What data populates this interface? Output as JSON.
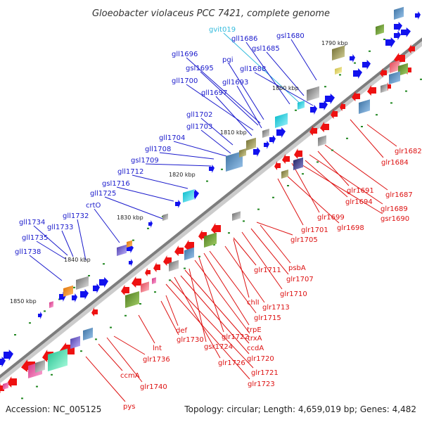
{
  "title": "Gloeobacter violaceus PCC 7421, complete genome",
  "footer": {
    "accession": "Accession: NC_005125",
    "summary": "Topology: circular; Length: 4,659,019 bp; Genes: 4,482"
  },
  "colors": {
    "forward_label": "#1a1acc",
    "reverse_label": "#dd1111",
    "rna_label": "#33bbdd",
    "forward_gene": "#1111ee",
    "reverse_gene": "#ee1111",
    "backbone": "#888888",
    "tick_dot": "#228822"
  },
  "scale": {
    "ticks": [
      "1790 kbp",
      "1800 kbp",
      "1810 kbp",
      "1820 kbp",
      "1830 kbp",
      "1840 kbp",
      "1850 kbp"
    ]
  },
  "labels": {
    "forward": [
      "gvit019",
      "gsl1680",
      "gll1686",
      "gsl1685",
      "gll1696",
      "pgi",
      "gsl1695",
      "gll1688",
      "gll1700",
      "gll1693",
      "gll1697",
      "gll1702",
      "gll1703",
      "gll1704",
      "gll1708",
      "gsl1709",
      "gll1712",
      "gsl1716",
      "gll1725",
      "crtO",
      "gll1732",
      "gll1734",
      "gll1733",
      "gll1735",
      "gll1738"
    ],
    "reverse": [
      "glr1682",
      "glr1684",
      "glr1687",
      "glr1691",
      "glr1689",
      "glr1694",
      "gsr1690",
      "glr1699",
      "glr1698",
      "glr1701",
      "glr1705",
      "psbA",
      "glr1711",
      "glr1707",
      "glr1710",
      "chlI",
      "glr1713",
      "glr1715",
      "trpE",
      "def",
      "glr1722",
      "trxA",
      "glr1730",
      "gsr1724",
      "ccdA",
      "lnt",
      "glr1720",
      "glr1736",
      "glr1726",
      "glr1721",
      "ccmA",
      "glr1723",
      "glr1740",
      "pys"
    ]
  }
}
